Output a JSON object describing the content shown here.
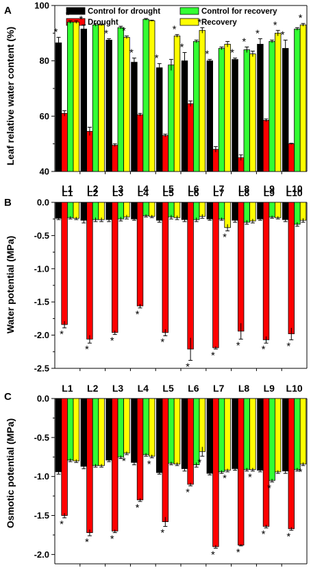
{
  "colors": {
    "control_drought": "#000000",
    "drought": "#ff0000",
    "control_recovery": "#33ff33",
    "recovery": "#ffff00"
  },
  "legend": {
    "items": [
      {
        "label": "Control for drought",
        "color": "#000000"
      },
      {
        "label": "Drought",
        "color": "#ff0000"
      },
      {
        "label": "Control for recovery",
        "color": "#33ff33"
      },
      {
        "label": "Recovery",
        "color": "#ffff00"
      }
    ]
  },
  "chart_data": [
    {
      "type": "bar",
      "panel": "A",
      "ylabel": "Leaf relative water content (%)",
      "ylim": [
        40,
        100
      ],
      "yticks": [
        40,
        60,
        80,
        100
      ],
      "categories": [
        "L1",
        "L2",
        "L3",
        "L4",
        "L5",
        "L6",
        "L7",
        "L8",
        "L9",
        "L10"
      ],
      "category_labels_position": "bottom",
      "series": [
        {
          "name": "Control for drought",
          "values": [
            86.5,
            91.5,
            87.5,
            79.5,
            77.5,
            80,
            80,
            80.5,
            86,
            84.5
          ],
          "errors": [
            2,
            1.5,
            0.5,
            1.5,
            1.5,
            3,
            0.5,
            0.5,
            2,
            3
          ]
        },
        {
          "name": "Drought",
          "values": [
            61,
            54.5,
            49.5,
            60.5,
            53,
            64.5,
            48,
            45,
            58.5,
            50
          ],
          "errors": [
            1,
            1.5,
            0.5,
            0.5,
            0.5,
            1,
            1,
            1,
            0.5,
            0.2
          ]
        },
        {
          "name": "Control for recovery",
          "values": [
            94,
            93,
            92,
            95,
            78.5,
            87,
            84.5,
            84,
            87,
            91.5
          ],
          "errors": [
            0.5,
            0.5,
            0.5,
            0.3,
            2,
            0.5,
            0.5,
            1,
            0.5,
            0.5
          ]
        },
        {
          "name": "Recovery",
          "values": [
            94,
            93,
            88.5,
            94.5,
            89,
            91,
            86,
            82.5,
            90,
            93
          ],
          "errors": [
            0.5,
            0.3,
            0.5,
            0.2,
            0.5,
            1,
            1,
            1,
            1,
            0.5
          ]
        }
      ],
      "significance_markers": [
        {
          "category": "L1",
          "markers": [
            {
              "series": 0,
              "side": "above"
            },
            {
              "series": 2,
              "side": "above"
            }
          ]
        },
        {
          "category": "L2",
          "markers": [
            {
              "series": 0,
              "side": "above"
            }
          ]
        },
        {
          "category": "L3",
          "markers": [
            {
              "series": 0,
              "side": "above"
            },
            {
              "series": 3,
              "side": "above"
            }
          ]
        },
        {
          "category": "L4",
          "markers": [
            {
              "series": 0,
              "side": "above"
            }
          ]
        },
        {
          "category": "L5",
          "markers": [
            {
              "series": 0,
              "side": "above"
            },
            {
              "series": 3,
              "side": "above"
            }
          ]
        },
        {
          "category": "L6",
          "markers": [
            {
              "series": 0,
              "side": "above"
            },
            {
              "series": 3,
              "side": "above"
            }
          ]
        },
        {
          "category": "L7",
          "markers": [
            {
              "series": 0,
              "side": "above"
            }
          ]
        },
        {
          "category": "L8",
          "markers": [
            {
              "series": 0,
              "side": "above"
            },
            {
              "series": 2,
              "side": "above"
            }
          ]
        },
        {
          "category": "L9",
          "markers": [
            {
              "series": 0,
              "side": "above"
            },
            {
              "series": 3,
              "side": "above"
            }
          ]
        },
        {
          "category": "L10",
          "markers": [
            {
              "series": 0,
              "side": "above"
            },
            {
              "series": 3,
              "side": "above"
            }
          ]
        }
      ]
    },
    {
      "type": "bar",
      "panel": "B",
      "ylabel": "Water potential (MPa)",
      "ylim": [
        -2.5,
        0
      ],
      "yticks": [
        0,
        -0.5,
        -1,
        -1.5,
        -2,
        -2.5
      ],
      "ytick_labels": [
        "0.0",
        "-0.5",
        "-1.0",
        "-1.5",
        "-2.0",
        "-2.5"
      ],
      "categories": [
        "L1",
        "L2",
        "L3",
        "L4",
        "L5",
        "L6",
        "L7",
        "L8",
        "L9",
        "L10"
      ],
      "category_labels_position": "top",
      "series": [
        {
          "name": "Control for drought",
          "values": [
            -0.24,
            -0.27,
            -0.26,
            -0.25,
            -0.27,
            -0.26,
            -0.25,
            -0.27,
            -0.25,
            -0.26
          ],
          "errors": [
            0.02,
            0.04,
            0.03,
            0.02,
            0.03,
            0.03,
            0.02,
            0.03,
            0.02,
            0.03
          ]
        },
        {
          "name": "Drought",
          "values": [
            -1.84,
            -2.06,
            -1.96,
            -1.56,
            -1.96,
            -2.21,
            -2.19,
            -1.94,
            -2.07,
            -1.98
          ],
          "errors": [
            0.05,
            0.06,
            0.03,
            0.03,
            0.05,
            0.17,
            0.02,
            0.12,
            0.05,
            0.09
          ]
        },
        {
          "name": "Control for recovery",
          "values": [
            -0.23,
            -0.26,
            -0.25,
            -0.2,
            -0.22,
            -0.26,
            -0.25,
            -0.3,
            -0.22,
            -0.33
          ],
          "errors": [
            0.02,
            0.03,
            0.03,
            0.02,
            0.03,
            0.03,
            0.02,
            0.03,
            0.02,
            0.03
          ]
        },
        {
          "name": "Recovery",
          "values": [
            -0.24,
            -0.26,
            -0.22,
            -0.21,
            -0.23,
            -0.21,
            -0.38,
            -0.28,
            -0.23,
            -0.27
          ],
          "errors": [
            0.02,
            0.03,
            0.03,
            0.02,
            0.03,
            0.03,
            0.05,
            0.03,
            0.02,
            0.03
          ]
        }
      ],
      "significance_markers": [
        {
          "category": "L1",
          "markers": [
            {
              "series": 1,
              "side": "below"
            }
          ]
        },
        {
          "category": "L2",
          "markers": [
            {
              "series": 1,
              "side": "below"
            }
          ]
        },
        {
          "category": "L3",
          "markers": [
            {
              "series": 1,
              "side": "below"
            }
          ]
        },
        {
          "category": "L4",
          "markers": [
            {
              "series": 1,
              "side": "below"
            }
          ]
        },
        {
          "category": "L5",
          "markers": [
            {
              "series": 1,
              "side": "below"
            }
          ]
        },
        {
          "category": "L6",
          "markers": [
            {
              "series": 1,
              "side": "below"
            }
          ]
        },
        {
          "category": "L7",
          "markers": [
            {
              "series": 1,
              "side": "below"
            },
            {
              "series": 3,
              "side": "below"
            }
          ]
        },
        {
          "category": "L8",
          "markers": [
            {
              "series": 1,
              "side": "below"
            }
          ]
        },
        {
          "category": "L9",
          "markers": [
            {
              "series": 1,
              "side": "below"
            }
          ]
        },
        {
          "category": "L10",
          "markers": [
            {
              "series": 1,
              "side": "below"
            }
          ]
        }
      ]
    },
    {
      "type": "bar",
      "panel": "C",
      "ylabel": "Osmotic potential (MPa)",
      "ylim": [
        -2.12,
        0
      ],
      "yticks": [
        0,
        -0.5,
        -1,
        -1.5,
        -2
      ],
      "ytick_labels": [
        "0.0",
        "-0.5",
        "-1.0",
        "-1.5",
        "-2.0"
      ],
      "categories": [
        "L1",
        "L2",
        "L3",
        "L4",
        "L5",
        "L6",
        "L7",
        "L8",
        "L9",
        "L10"
      ],
      "category_labels_position": "top",
      "series": [
        {
          "name": "Control for drought",
          "values": [
            -0.94,
            -0.87,
            -0.79,
            -0.82,
            -0.95,
            -0.9,
            -0.96,
            -0.9,
            -0.92,
            -0.93
          ],
          "errors": [
            0.03,
            0.03,
            0.02,
            0.03,
            0.02,
            0.03,
            0.02,
            0.02,
            0.02,
            0.03
          ]
        },
        {
          "name": "Drought",
          "values": [
            -1.5,
            -1.72,
            -1.7,
            -1.3,
            -1.58,
            -1.1,
            -1.9,
            -1.88,
            -1.64,
            -1.67
          ],
          "errors": [
            0.03,
            0.04,
            0.02,
            0.02,
            0.06,
            0.02,
            0.02,
            0.01,
            0.02,
            0.02
          ]
        },
        {
          "name": "Control for recovery",
          "values": [
            -0.79,
            -0.86,
            -0.75,
            -0.72,
            -0.83,
            -0.85,
            -0.94,
            -0.91,
            -1.05,
            -0.91
          ],
          "errors": [
            0.02,
            0.02,
            0.02,
            0.02,
            0.02,
            0.03,
            0.02,
            0.02,
            0.02,
            0.02
          ]
        },
        {
          "name": "Recovery",
          "values": [
            -0.8,
            -0.86,
            -0.7,
            -0.74,
            -0.84,
            -0.68,
            -0.92,
            -0.91,
            -0.94,
            -0.84
          ],
          "errors": [
            0.02,
            0.02,
            0.02,
            0.02,
            0.02,
            0.06,
            0.02,
            0.02,
            0.02,
            0.02
          ]
        }
      ],
      "significance_markers": [
        {
          "category": "L1",
          "markers": [
            {
              "series": 1,
              "side": "below"
            }
          ]
        },
        {
          "category": "L2",
          "markers": [
            {
              "series": 1,
              "side": "below"
            }
          ]
        },
        {
          "category": "L3",
          "markers": [
            {
              "series": 1,
              "side": "below"
            },
            {
              "series": 3,
              "side": "below"
            }
          ]
        },
        {
          "category": "L4",
          "markers": [
            {
              "series": 1,
              "side": "below"
            },
            {
              "series": 3,
              "side": "below"
            }
          ]
        },
        {
          "category": "L5",
          "markers": [
            {
              "series": 1,
              "side": "below"
            }
          ]
        },
        {
          "category": "L6",
          "markers": [
            {
              "series": 1,
              "side": "below"
            },
            {
              "series": 3,
              "side": "below"
            }
          ]
        },
        {
          "category": "L7",
          "markers": [
            {
              "series": 1,
              "side": "below"
            },
            {
              "series": 3,
              "side": "below"
            }
          ]
        },
        {
          "category": "L8",
          "markers": [
            {
              "series": 1,
              "side": "below"
            },
            {
              "series": 3,
              "side": "below"
            }
          ]
        },
        {
          "category": "L9",
          "markers": [
            {
              "series": 1,
              "side": "below"
            },
            {
              "series": 2,
              "side": "below"
            }
          ]
        },
        {
          "category": "L10",
          "markers": [
            {
              "series": 1,
              "side": "below"
            },
            {
              "series": 3,
              "side": "below"
            }
          ]
        }
      ]
    }
  ]
}
